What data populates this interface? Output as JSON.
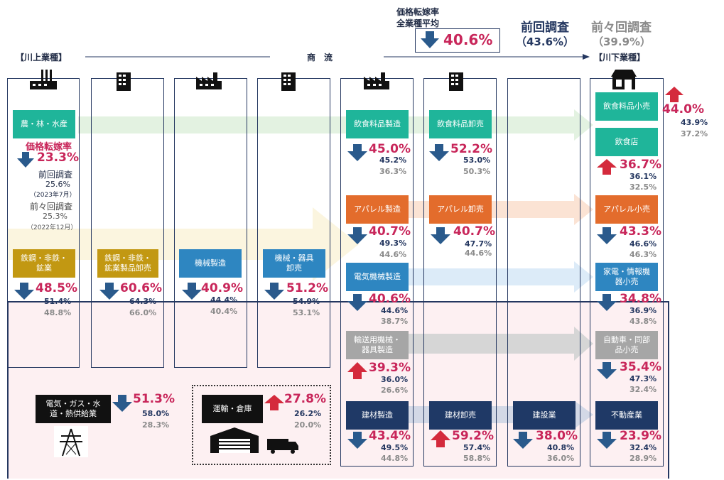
{
  "header": {
    "upstream_label": "【川上業種】",
    "flow_label": "商　流",
    "downstream_label": "【川下業種】",
    "avg_title_1": "価格転嫁率",
    "avg_title_2": "全業種平均",
    "avg_value": "40.6%",
    "prev_title": "前回調査",
    "prev_value": "（43.6%）",
    "prev2_title": "前々回調査",
    "prev2_value": "（39.9%）"
  },
  "agri": {
    "label": "農・林・水産",
    "rate_title": "価格転嫁率",
    "rate": "23.3%",
    "prev_title": "前回調査",
    "prev": "25.6%",
    "prev_date": "（2023年7月）",
    "prev2_title": "前々回調査",
    "prev2": "25.3%",
    "prev2_date": "（2022年12月）"
  },
  "industries": {
    "steel": {
      "label": "鉄鋼・非鉄・鉱業",
      "rate": "48.5%",
      "prev": "51.4%",
      "prev2": "48.8%",
      "dir": "down"
    },
    "steel_wholesale": {
      "label": "鉄鋼・非鉄・鉱業製品卸売",
      "rate": "60.6%",
      "prev": "64.3%",
      "prev2": "66.0%",
      "dir": "down"
    },
    "machinery": {
      "label": "機械製造",
      "rate": "40.9%",
      "prev": "44.4%",
      "prev2": "40.4%",
      "dir": "down"
    },
    "machinery_wholesale": {
      "label": "機械・器具卸売",
      "rate": "51.2%",
      "prev": "54.9%",
      "prev2": "53.1%",
      "dir": "down"
    },
    "food_mfg": {
      "label": "飲食料品製造",
      "rate": "45.0%",
      "prev": "45.2%",
      "prev2": "36.3%",
      "dir": "down"
    },
    "food_wholesale": {
      "label": "飲食料品卸売",
      "rate": "52.2%",
      "prev": "53.0%",
      "prev2": "50.3%",
      "dir": "down"
    },
    "food_retail": {
      "label": "飲食料品小売",
      "rate": "44.0%",
      "prev": "43.9%",
      "prev2": "37.2%",
      "dir": "up"
    },
    "restaurant": {
      "label": "飲食店",
      "rate": "36.7%",
      "prev": "36.1%",
      "prev2": "32.5%",
      "dir": "up"
    },
    "apparel_mfg": {
      "label": "アパレル製造",
      "rate": "40.7%",
      "prev": "49.3%",
      "prev2": "44.6%",
      "dir": "down"
    },
    "apparel_wholesale": {
      "label": "アパレル卸売",
      "rate": "40.7%",
      "prev": "47.7%",
      "prev2": "44.6%",
      "dir": "down"
    },
    "apparel_retail": {
      "label": "アパレル小売",
      "rate": "43.3%",
      "prev": "46.6%",
      "prev2": "46.3%",
      "dir": "down"
    },
    "electrical_mfg": {
      "label": "電気機械製造",
      "rate": "40.6%",
      "prev": "44.6%",
      "prev2": "38.7%",
      "dir": "down"
    },
    "electronics_retail": {
      "label": "家電・情報機器小売",
      "rate": "34.8%",
      "prev": "36.9%",
      "prev2": "43.8%",
      "dir": "down"
    },
    "transport_eq_mfg": {
      "label": "輸送用機械・器具製造",
      "rate": "39.3%",
      "prev": "36.0%",
      "prev2": "26.6%",
      "dir": "up"
    },
    "auto_retail": {
      "label": "自動車・同部品小売",
      "rate": "35.4%",
      "prev": "47.3%",
      "prev2": "32.4%",
      "dir": "down"
    },
    "building_mat_mfg": {
      "label": "建材製造",
      "rate": "43.4%",
      "prev": "49.5%",
      "prev2": "44.8%",
      "dir": "down"
    },
    "building_mat_wholesale": {
      "label": "建材卸売",
      "rate": "59.2%",
      "prev": "57.4%",
      "prev2": "58.8%",
      "dir": "up"
    },
    "construction": {
      "label": "建設業",
      "rate": "38.0%",
      "prev": "40.8%",
      "prev2": "36.0%",
      "dir": "down"
    },
    "real_estate": {
      "label": "不動産業",
      "rate": "23.9%",
      "prev": "32.4%",
      "prev2": "28.9%",
      "dir": "down"
    },
    "utilities": {
      "label": "電気・ガス・水道・熱供給業",
      "rate": "51.3%",
      "prev": "58.0%",
      "prev2": "28.3%",
      "dir": "down"
    },
    "logistics": {
      "label": "運輸・倉庫",
      "rate": "27.8%",
      "prev": "26.2%",
      "prev2": "20.0%",
      "dir": "up"
    }
  },
  "colors": {
    "navy": "#1f3966",
    "accent_red": "#c8265a",
    "up_arrow": "#d42a3c",
    "down_arrow": "#2a5a8c",
    "green_band": "#e3f2e1",
    "orange_band": "#fbe3d4",
    "blue_band": "#dcebf8",
    "gray_band": "#dadada",
    "yellow_band": "#fbf5df"
  }
}
